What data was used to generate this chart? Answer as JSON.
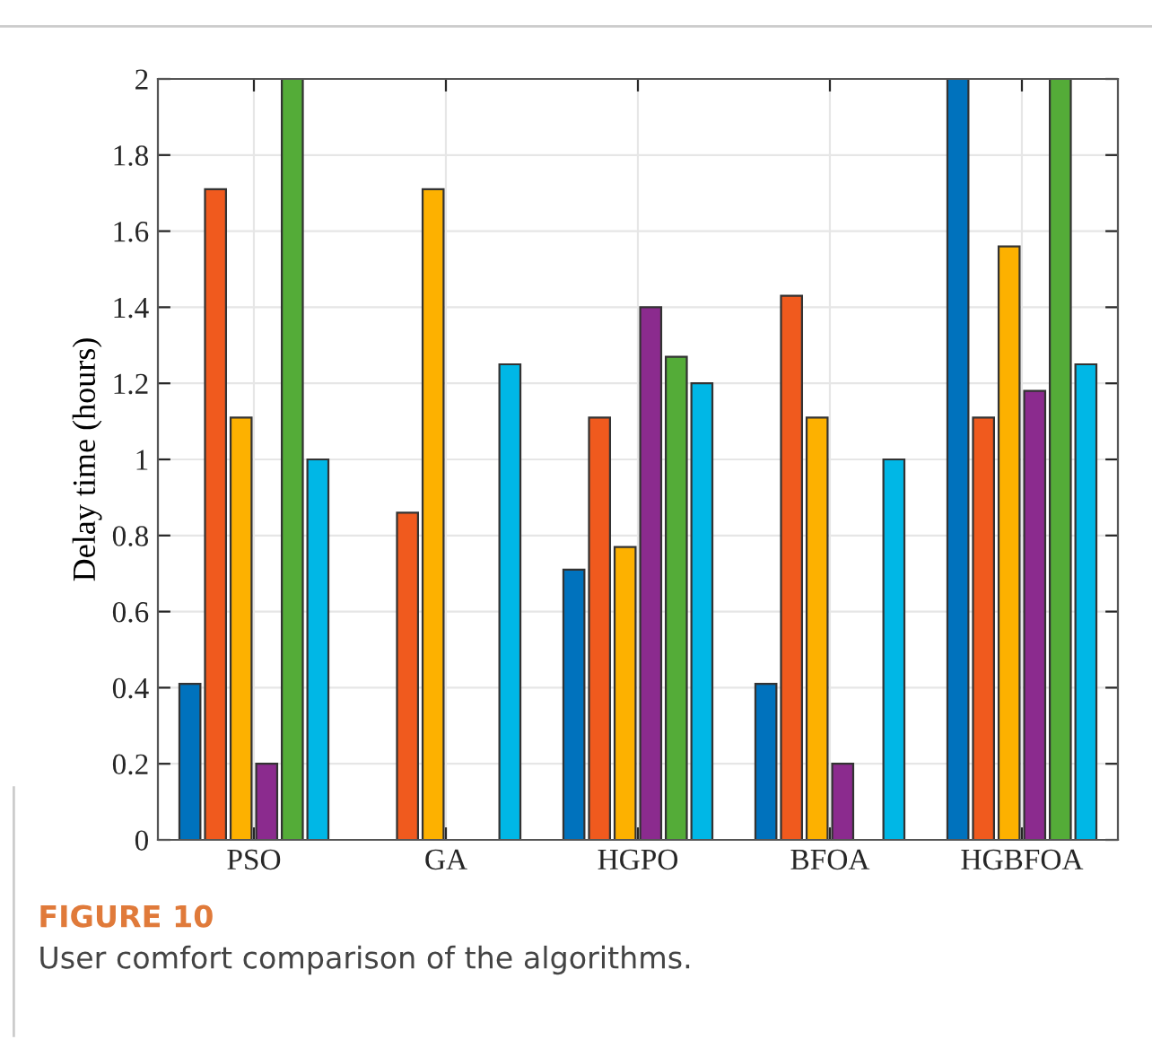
{
  "chart_data": {
    "type": "bar",
    "ylabel": "Delay time (hours)",
    "categories": [
      "PSO",
      "GA",
      "HGPO",
      "BFOA",
      "HGBFOA"
    ],
    "series": [
      {
        "color": "#0072bd",
        "values": [
          0.41,
          null,
          0.71,
          0.41,
          2
        ]
      },
      {
        "color": "#f05a1e",
        "values": [
          1.71,
          0.86,
          1.11,
          1.43,
          1.11
        ]
      },
      {
        "color": "#fdb100",
        "values": [
          1.11,
          1.71,
          0.77,
          1.11,
          1.56
        ]
      },
      {
        "color": "#8b2b8e",
        "values": [
          0.2,
          null,
          1.4,
          0.2,
          1.18
        ]
      },
      {
        "color": "#54ac38",
        "values": [
          2,
          null,
          1.27,
          null,
          2
        ]
      },
      {
        "color": "#00b7e6",
        "values": [
          1,
          1.25,
          1.2,
          1,
          1.25
        ]
      }
    ],
    "ylim": [
      0,
      2
    ],
    "yticks": [
      0,
      0.2,
      0.4,
      0.6,
      0.8,
      1,
      1.2,
      1.4,
      1.6,
      1.8,
      2
    ],
    "grid": true,
    "annotations": [
      "FIGURE 10",
      "User comfort comparison of the algorithms."
    ]
  }
}
